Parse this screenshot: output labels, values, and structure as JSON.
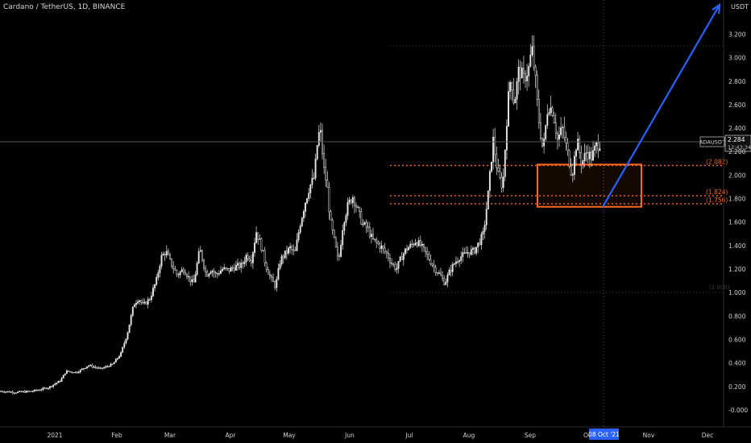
{
  "header": {
    "title": "Cardano / TetherUS, 1D, BINANCE",
    "unit": "USDT"
  },
  "colors": {
    "background": "#000000",
    "candle": "#e6e6e6",
    "fib": "#ff6a1a",
    "projection_arrow": "#2962ff",
    "date_badge": "#2962ff",
    "price_line": "#555555"
  },
  "chart_data": {
    "type": "candlestick",
    "symbol": "ADAUSDT",
    "x_ticks": [
      "2021",
      "Feb",
      "Mar",
      "Apr",
      "May",
      "Jun",
      "Jul",
      "Aug",
      "Sep",
      "Oc",
      "Nov",
      "Dec"
    ],
    "y_ticks": [
      "3.200",
      "3.000",
      "2.800",
      "2.600",
      "2.400",
      "2.200",
      "2.000",
      "1.800",
      "1.600",
      "1.400",
      "1.200",
      "1.000",
      "0.800",
      "0.600",
      "0.400",
      "0.200",
      "-0.000"
    ],
    "ylim": [
      -0.05,
      3.3
    ],
    "last_price": {
      "label": "ADAUSDT",
      "value": "2.284",
      "countdown": "12:43:34"
    },
    "date_badge": "08 Oct '21",
    "fib_levels": [
      {
        "label": "(2.082)",
        "value": 2.082
      },
      {
        "label": "(1.824)",
        "value": 1.824
      },
      {
        "label": "(1.756)",
        "value": 1.756
      }
    ],
    "fib_extra_levels": [
      3.1,
      1.0
    ],
    "fib_extra_label": "(1.000)",
    "support_zone": {
      "top": 2.09,
      "bottom": 1.73
    },
    "projection": {
      "from": 1.73,
      "to": 3.35
    },
    "price_path": [
      [
        0,
        0.16
      ],
      [
        20,
        0.15
      ],
      [
        40,
        0.16
      ],
      [
        60,
        0.19
      ],
      [
        75,
        0.25
      ],
      [
        82,
        0.33
      ],
      [
        95,
        0.32
      ],
      [
        110,
        0.38
      ],
      [
        125,
        0.35
      ],
      [
        140,
        0.39
      ],
      [
        150,
        0.48
      ],
      [
        158,
        0.65
      ],
      [
        166,
        0.9
      ],
      [
        172,
        0.95
      ],
      [
        178,
        0.89
      ],
      [
        186,
        0.95
      ],
      [
        194,
        1.1
      ],
      [
        200,
        1.3
      ],
      [
        206,
        1.35
      ],
      [
        212,
        1.25
      ],
      [
        220,
        1.15
      ],
      [
        228,
        1.2
      ],
      [
        234,
        1.13
      ],
      [
        240,
        1.07
      ],
      [
        248,
        1.37
      ],
      [
        256,
        1.15
      ],
      [
        262,
        1.2
      ],
      [
        268,
        1.15
      ],
      [
        276,
        1.2
      ],
      [
        284,
        1.19
      ],
      [
        292,
        1.22
      ],
      [
        300,
        1.23
      ],
      [
        306,
        1.32
      ],
      [
        312,
        1.28
      ],
      [
        318,
        1.52
      ],
      [
        324,
        1.4
      ],
      [
        330,
        1.23
      ],
      [
        336,
        1.12
      ],
      [
        342,
        1.05
      ],
      [
        348,
        1.28
      ],
      [
        354,
        1.33
      ],
      [
        360,
        1.38
      ],
      [
        366,
        1.33
      ],
      [
        372,
        1.57
      ],
      [
        378,
        1.75
      ],
      [
        384,
        1.9
      ],
      [
        390,
        1.98
      ],
      [
        395,
        2.35
      ],
      [
        398,
        2.35
      ],
      [
        402,
        2.05
      ],
      [
        406,
        1.9
      ],
      [
        410,
        1.6
      ],
      [
        416,
        1.4
      ],
      [
        420,
        1.25
      ],
      [
        426,
        1.6
      ],
      [
        432,
        1.75
      ],
      [
        438,
        1.82
      ],
      [
        444,
        1.7
      ],
      [
        450,
        1.58
      ],
      [
        456,
        1.55
      ],
      [
        462,
        1.45
      ],
      [
        468,
        1.42
      ],
      [
        474,
        1.38
      ],
      [
        480,
        1.33
      ],
      [
        486,
        1.25
      ],
      [
        492,
        1.2
      ],
      [
        498,
        1.3
      ],
      [
        504,
        1.37
      ],
      [
        510,
        1.4
      ],
      [
        516,
        1.44
      ],
      [
        522,
        1.4
      ],
      [
        528,
        1.34
      ],
      [
        534,
        1.27
      ],
      [
        540,
        1.2
      ],
      [
        546,
        1.15
      ],
      [
        552,
        1.08
      ],
      [
        558,
        1.18
      ],
      [
        564,
        1.25
      ],
      [
        570,
        1.3
      ],
      [
        576,
        1.32
      ],
      [
        582,
        1.35
      ],
      [
        588,
        1.35
      ],
      [
        594,
        1.42
      ],
      [
        600,
        1.5
      ],
      [
        606,
        1.85
      ],
      [
        612,
        2.3
      ],
      [
        618,
        2.0
      ],
      [
        624,
        1.9
      ],
      [
        630,
        2.6
      ],
      [
        634,
        2.85
      ],
      [
        638,
        2.6
      ],
      [
        644,
        2.9
      ],
      [
        650,
        2.82
      ],
      [
        656,
        2.9
      ],
      [
        660,
        3.08
      ],
      [
        664,
        2.85
      ],
      [
        668,
        2.5
      ],
      [
        674,
        2.2
      ],
      [
        680,
        2.6
      ],
      [
        686,
        2.55
      ],
      [
        692,
        2.3
      ],
      [
        698,
        2.4
      ],
      [
        704,
        2.2
      ],
      [
        710,
        2.0
      ],
      [
        716,
        2.3
      ],
      [
        722,
        2.1
      ],
      [
        728,
        2.2
      ],
      [
        734,
        2.15
      ],
      [
        740,
        2.25
      ],
      [
        746,
        2.28
      ]
    ]
  }
}
